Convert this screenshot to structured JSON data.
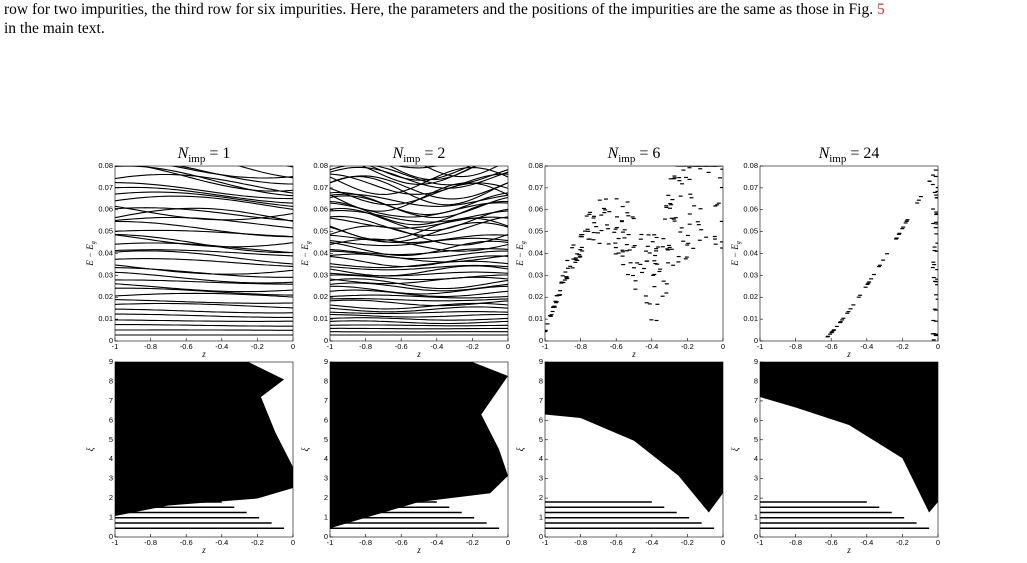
{
  "caption": {
    "line1": "row for two impurities, the third row for six impurities. Here, the parameters and the positions of the impurities are the same as those in Fig.",
    "fig_ref": "5",
    "line2": "in the main text."
  },
  "panels": [
    {
      "title": {
        "base": "N",
        "sub": "imp",
        "rest": "= 1"
      },
      "xlabel": "z",
      "ylabel": {
        "base": "E − E",
        "sub": "g"
      },
      "xlim": [
        -1,
        0
      ],
      "ylim": [
        0,
        0.08
      ],
      "xticks": [
        -1,
        -0.8,
        -0.6,
        -0.4,
        -0.2,
        0
      ],
      "yticks": [
        0,
        0.01,
        0.02,
        0.03,
        0.04,
        0.05,
        0.06,
        0.07,
        0.08
      ]
    },
    {
      "title": {
        "base": "N",
        "sub": "imp",
        "rest": "= 2"
      },
      "xlabel": "z",
      "ylabel": {
        "base": "E − E",
        "sub": "g"
      },
      "xlim": [
        -1,
        0
      ],
      "ylim": [
        0,
        0.08
      ],
      "xticks": [
        -1,
        -0.8,
        -0.6,
        -0.4,
        -0.2,
        0
      ],
      "yticks": [
        0,
        0.01,
        0.02,
        0.03,
        0.04,
        0.05,
        0.06,
        0.07,
        0.08
      ]
    },
    {
      "title": {
        "base": "N",
        "sub": "imp",
        "rest": "= 6"
      },
      "xlabel": "z",
      "ylabel": {
        "base": "E − E",
        "sub": "g"
      },
      "xlim": [
        -1,
        0
      ],
      "ylim": [
        0,
        0.08
      ],
      "xticks": [
        -1,
        -0.8,
        -0.6,
        -0.4,
        -0.2,
        0
      ],
      "yticks": [
        0,
        0.01,
        0.02,
        0.03,
        0.04,
        0.05,
        0.06,
        0.07,
        0.08
      ]
    },
    {
      "title": {
        "base": "N",
        "sub": "imp",
        "rest": "= 24"
      },
      "xlabel": "z",
      "ylabel": {
        "base": "E − E",
        "sub": "g"
      },
      "xlim": [
        -1,
        0
      ],
      "ylim": [
        0,
        0.08
      ],
      "xticks": [
        -1,
        -0.8,
        -0.6,
        -0.4,
        -0.2,
        0
      ],
      "yticks": [
        0,
        0.01,
        0.02,
        0.03,
        0.04,
        0.05,
        0.06,
        0.07,
        0.08
      ]
    },
    {
      "xlabel": "z",
      "ylabel": {
        "base": "ξ"
      },
      "xlim": [
        -1,
        0
      ],
      "ylim": [
        0,
        9
      ],
      "xticks": [
        -1,
        -0.8,
        -0.6,
        -0.4,
        -0.2,
        0
      ],
      "yticks": [
        0,
        1,
        2,
        3,
        4,
        5,
        6,
        7,
        8,
        9
      ]
    },
    {
      "xlabel": "z",
      "ylabel": {
        "base": "ξ"
      },
      "xlim": [
        -1,
        0
      ],
      "ylim": [
        0,
        9
      ],
      "xticks": [
        -1,
        -0.8,
        -0.6,
        -0.4,
        -0.2,
        0
      ],
      "yticks": [
        0,
        1,
        2,
        3,
        4,
        5,
        6,
        7,
        8,
        9
      ]
    },
    {
      "xlabel": "z",
      "ylabel": {
        "base": "ξ"
      },
      "xlim": [
        -1,
        0
      ],
      "ylim": [
        0,
        9
      ],
      "xticks": [
        -1,
        -0.8,
        -0.6,
        -0.4,
        -0.2,
        0
      ],
      "yticks": [
        0,
        1,
        2,
        3,
        4,
        5,
        6,
        7,
        8,
        9
      ]
    },
    {
      "xlabel": "z",
      "ylabel": {
        "base": "ξ"
      },
      "xlim": [
        -1,
        0
      ],
      "ylim": [
        0,
        9
      ],
      "xticks": [
        -1,
        -0.8,
        -0.6,
        -0.4,
        -0.2,
        0
      ],
      "yticks": [
        0,
        1,
        2,
        3,
        4,
        5,
        6,
        7,
        8,
        9
      ]
    }
  ]
}
